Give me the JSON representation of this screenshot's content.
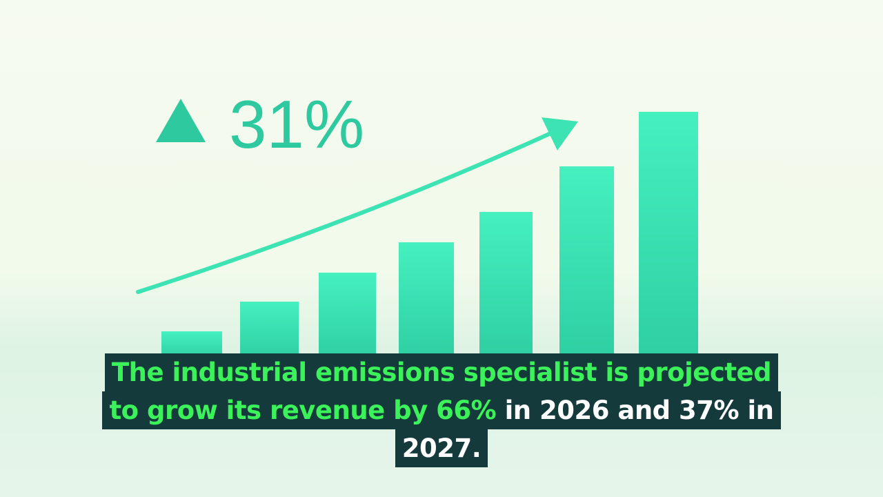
{
  "headline": {
    "text": "31%"
  },
  "caption": {
    "lines": [
      [
        {
          "text": "The industrial emissions specialist is projected",
          "style": "highlight"
        }
      ],
      [
        {
          "text": "to grow its revenue by 66%",
          "style": "highlight"
        },
        {
          "text": " in 2026 and 37% in",
          "style": "plain"
        }
      ],
      [
        {
          "text": "2027.",
          "style": "plain"
        }
      ]
    ]
  }
}
